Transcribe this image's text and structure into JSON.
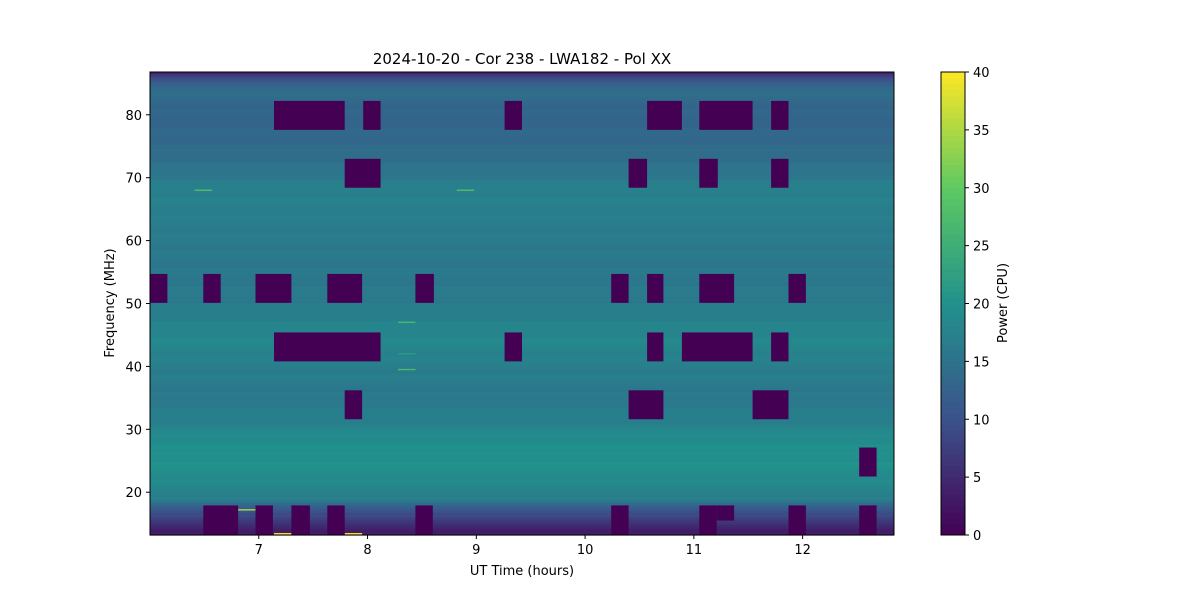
{
  "chart_data": {
    "type": "heatmap",
    "title": "2024-10-20 - Cor 238 - LWA182 - Pol XX",
    "xlabel": "UT Time (hours)",
    "ylabel": "Frequency (MHz)",
    "xlim": [
      6.0,
      12.84
    ],
    "ylim": [
      13.2,
      86.8
    ],
    "xticks": [
      7,
      8,
      9,
      10,
      11,
      12
    ],
    "yticks": [
      20,
      30,
      40,
      50,
      60,
      70,
      80
    ],
    "colormap": "viridis",
    "colorbar": {
      "label": "Power (CPU)",
      "range": [
        0,
        40
      ],
      "ticks": [
        0,
        5,
        10,
        15,
        20,
        25,
        30,
        35,
        40
      ]
    },
    "background_profile": [
      [
        86.8,
        4
      ],
      [
        86.0,
        8
      ],
      [
        85.0,
        12
      ],
      [
        84.0,
        14.5
      ],
      [
        82.0,
        13.5
      ],
      [
        80.0,
        13
      ],
      [
        76.0,
        13.5
      ],
      [
        72.0,
        15
      ],
      [
        68.0,
        17.5
      ],
      [
        64.0,
        17
      ],
      [
        60.0,
        16.5
      ],
      [
        55.0,
        16
      ],
      [
        50.0,
        16.5
      ],
      [
        46.0,
        18
      ],
      [
        44.0,
        18.5
      ],
      [
        40.0,
        17
      ],
      [
        35.0,
        16
      ],
      [
        31.0,
        17.5
      ],
      [
        28.0,
        19.5
      ],
      [
        25.0,
        20
      ],
      [
        22.0,
        19
      ],
      [
        19.0,
        17
      ],
      [
        17.5,
        12
      ],
      [
        16.0,
        8
      ],
      [
        14.5,
        5
      ],
      [
        13.2,
        3
      ]
    ],
    "masked_blocks": [
      {
        "t": [
          7.14,
          7.79
        ],
        "f": [
          77.6,
          82.2
        ]
      },
      {
        "t": [
          7.96,
          8.12
        ],
        "f": [
          77.6,
          82.2
        ]
      },
      {
        "t": [
          9.26,
          9.42
        ],
        "f": [
          77.6,
          82.2
        ]
      },
      {
        "t": [
          10.57,
          10.89
        ],
        "f": [
          77.6,
          82.2
        ]
      },
      {
        "t": [
          11.05,
          11.54
        ],
        "f": [
          77.6,
          82.2
        ]
      },
      {
        "t": [
          11.71,
          11.87
        ],
        "f": [
          77.6,
          82.2
        ]
      },
      {
        "t": [
          7.79,
          8.12
        ],
        "f": [
          68.4,
          73.0
        ]
      },
      {
        "t": [
          10.4,
          10.57
        ],
        "f": [
          68.4,
          73.0
        ]
      },
      {
        "t": [
          11.05,
          11.22
        ],
        "f": [
          68.4,
          73.0
        ]
      },
      {
        "t": [
          11.71,
          11.87
        ],
        "f": [
          68.4,
          73.0
        ]
      },
      {
        "t": [
          6.0,
          6.16
        ],
        "f": [
          50.1,
          54.7
        ]
      },
      {
        "t": [
          6.49,
          6.65
        ],
        "f": [
          50.1,
          54.7
        ]
      },
      {
        "t": [
          6.97,
          7.3
        ],
        "f": [
          50.1,
          54.7
        ]
      },
      {
        "t": [
          7.63,
          7.95
        ],
        "f": [
          50.1,
          54.7
        ]
      },
      {
        "t": [
          8.44,
          8.61
        ],
        "f": [
          50.1,
          54.7
        ]
      },
      {
        "t": [
          10.24,
          10.4
        ],
        "f": [
          50.1,
          54.7
        ]
      },
      {
        "t": [
          10.57,
          10.72
        ],
        "f": [
          50.1,
          54.7
        ]
      },
      {
        "t": [
          11.05,
          11.37
        ],
        "f": [
          50.1,
          54.7
        ]
      },
      {
        "t": [
          11.87,
          12.03
        ],
        "f": [
          50.1,
          54.7
        ]
      },
      {
        "t": [
          7.14,
          8.12
        ],
        "f": [
          40.8,
          45.4
        ]
      },
      {
        "t": [
          9.26,
          9.42
        ],
        "f": [
          40.8,
          45.4
        ]
      },
      {
        "t": [
          10.57,
          10.72
        ],
        "f": [
          40.8,
          45.4
        ]
      },
      {
        "t": [
          10.89,
          11.54
        ],
        "f": [
          40.8,
          45.4
        ]
      },
      {
        "t": [
          11.71,
          11.87
        ],
        "f": [
          40.8,
          45.4
        ]
      },
      {
        "t": [
          7.79,
          7.95
        ],
        "f": [
          31.6,
          36.2
        ]
      },
      {
        "t": [
          10.4,
          10.72
        ],
        "f": [
          31.6,
          36.2
        ]
      },
      {
        "t": [
          11.54,
          11.87
        ],
        "f": [
          31.6,
          36.2
        ]
      },
      {
        "t": [
          12.52,
          12.68
        ],
        "f": [
          22.5,
          27.1
        ]
      },
      {
        "t": [
          6.49,
          6.81
        ],
        "f": [
          13.2,
          17.9
        ]
      },
      {
        "t": [
          6.97,
          7.13
        ],
        "f": [
          13.2,
          17.9
        ]
      },
      {
        "t": [
          7.3,
          7.47
        ],
        "f": [
          13.2,
          17.9
        ]
      },
      {
        "t": [
          7.63,
          7.79
        ],
        "f": [
          13.2,
          17.9
        ]
      },
      {
        "t": [
          8.44,
          8.6
        ],
        "f": [
          13.2,
          17.9
        ]
      },
      {
        "t": [
          10.24,
          10.4
        ],
        "f": [
          13.2,
          17.9
        ]
      },
      {
        "t": [
          11.05,
          11.21
        ],
        "f": [
          13.2,
          17.9
        ]
      },
      {
        "t": [
          11.21,
          11.37
        ],
        "f": [
          15.5,
          17.9
        ]
      },
      {
        "t": [
          11.87,
          12.03
        ],
        "f": [
          13.2,
          17.9
        ]
      },
      {
        "t": [
          12.52,
          12.68
        ],
        "f": [
          13.2,
          17.9
        ]
      }
    ],
    "spikes": [
      {
        "t": [
          6.41,
          6.57
        ],
        "f": 68.0,
        "power": 28
      },
      {
        "t": [
          8.82,
          8.98
        ],
        "f": 68.0,
        "power": 28
      },
      {
        "t": [
          8.28,
          8.44
        ],
        "f": 47.0,
        "power": 27
      },
      {
        "t": [
          8.28,
          8.44
        ],
        "f": 42.0,
        "power": 22
      },
      {
        "t": [
          8.28,
          8.44
        ],
        "f": 39.5,
        "power": 27
      },
      {
        "t": [
          7.14,
          7.3
        ],
        "f": 13.4,
        "power": 40
      },
      {
        "t": [
          7.79,
          7.95
        ],
        "f": 13.4,
        "power": 40
      },
      {
        "t": [
          6.81,
          6.97
        ],
        "f": 17.2,
        "power": 35
      }
    ]
  }
}
